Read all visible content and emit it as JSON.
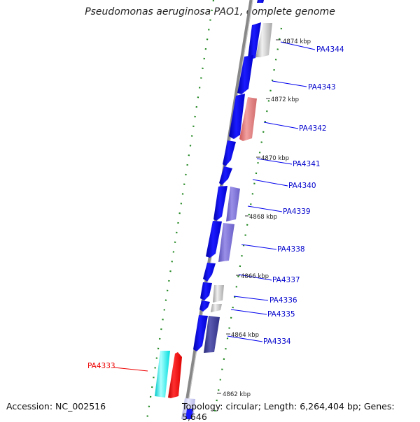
{
  "title": "Pseudomonas aeruginosa PAO1, complete genome",
  "accession_text": "Accession: NC_002516",
  "topology_text": "Topology: circular; Length: 6,264,404 bp; Genes: 5,646",
  "colors": {
    "backbone": "#888888",
    "forward_gene": "#0000ee",
    "reverse_gene": "#ee0000",
    "cyan_gene": "#00eeee",
    "gc_tick": "#228822",
    "label_blue": "#0000cc",
    "label_red": "#ee0000"
  },
  "gene_labels": [
    {
      "name": "PA4344",
      "color": "blue"
    },
    {
      "name": "PA4343",
      "color": "blue"
    },
    {
      "name": "PA4342",
      "color": "blue"
    },
    {
      "name": "PA4341",
      "color": "blue"
    },
    {
      "name": "PA4340",
      "color": "blue"
    },
    {
      "name": "PA4339",
      "color": "blue"
    },
    {
      "name": "PA4338",
      "color": "blue"
    },
    {
      "name": "PA4337",
      "color": "blue"
    },
    {
      "name": "PA4336",
      "color": "blue"
    },
    {
      "name": "PA4335",
      "color": "blue"
    },
    {
      "name": "PA4334",
      "color": "blue"
    },
    {
      "name": "PA4333",
      "color": "red"
    }
  ],
  "kbp_ticks": [
    "4874 kbp",
    "4872 kbp",
    "4870 kbp",
    "4868 kbp",
    "4866 kbp",
    "4864 kbp",
    "4862 kbp"
  ]
}
